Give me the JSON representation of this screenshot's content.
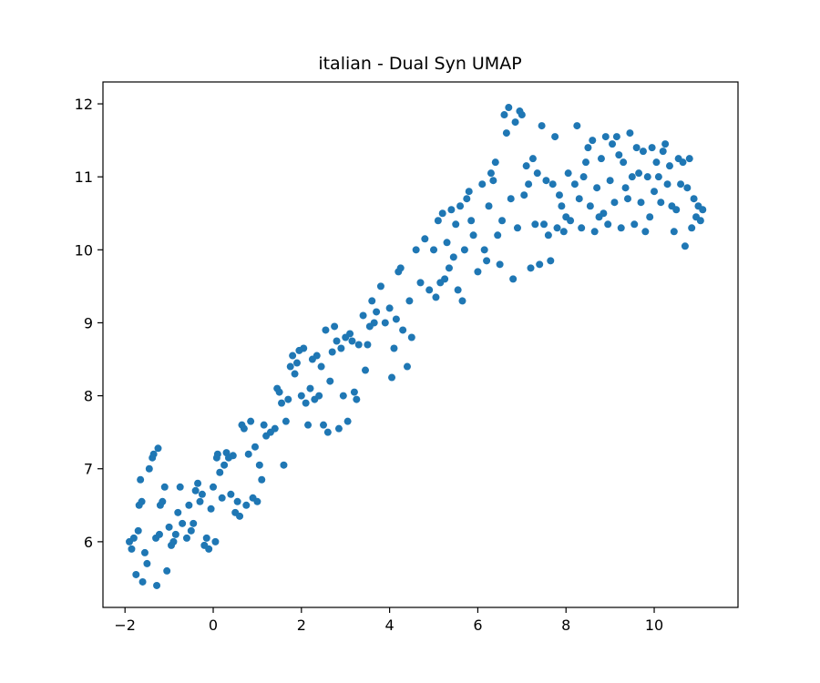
{
  "chart_data": {
    "type": "scatter",
    "title": "italian - Dual Syn UMAP",
    "xlabel": "",
    "ylabel": "",
    "xlim": [
      -2.5,
      11.9
    ],
    "ylim": [
      5.1,
      12.3
    ],
    "xticks": [
      -2,
      0,
      2,
      4,
      6,
      8,
      10
    ],
    "xtick_labels": [
      "−2",
      "0",
      "2",
      "4",
      "6",
      "8",
      "10"
    ],
    "yticks": [
      6,
      7,
      8,
      9,
      10,
      11,
      12
    ],
    "ytick_labels": [
      "6",
      "7",
      "8",
      "9",
      "10",
      "11",
      "12"
    ],
    "grid": false,
    "legend": false,
    "marker_color": "#1f77b4",
    "series": [
      {
        "points": [
          [
            -1.9,
            6.0
          ],
          [
            -1.85,
            5.9
          ],
          [
            -1.8,
            6.05
          ],
          [
            -1.75,
            5.55
          ],
          [
            -1.7,
            6.15
          ],
          [
            -1.68,
            6.5
          ],
          [
            -1.65,
            6.85
          ],
          [
            -1.62,
            6.55
          ],
          [
            -1.6,
            5.45
          ],
          [
            -1.55,
            5.85
          ],
          [
            -1.5,
            5.7
          ],
          [
            -1.45,
            7.0
          ],
          [
            -1.38,
            7.15
          ],
          [
            -1.35,
            7.2
          ],
          [
            -1.3,
            6.05
          ],
          [
            -1.28,
            5.4
          ],
          [
            -1.25,
            7.28
          ],
          [
            -1.22,
            6.1
          ],
          [
            -1.2,
            6.5
          ],
          [
            -1.15,
            6.55
          ],
          [
            -1.1,
            6.75
          ],
          [
            -1.05,
            5.6
          ],
          [
            -1.0,
            6.2
          ],
          [
            -0.95,
            5.95
          ],
          [
            -0.9,
            6.0
          ],
          [
            -0.85,
            6.1
          ],
          [
            -0.8,
            6.4
          ],
          [
            -0.75,
            6.75
          ],
          [
            -0.7,
            6.25
          ],
          [
            -0.6,
            6.05
          ],
          [
            -0.55,
            6.5
          ],
          [
            -0.5,
            6.15
          ],
          [
            -0.45,
            6.25
          ],
          [
            -0.4,
            6.7
          ],
          [
            -0.35,
            6.8
          ],
          [
            -0.3,
            6.55
          ],
          [
            -0.25,
            6.65
          ],
          [
            -0.2,
            5.95
          ],
          [
            -0.15,
            6.05
          ],
          [
            -0.1,
            5.9
          ],
          [
            -0.05,
            6.45
          ],
          [
            0.0,
            6.75
          ],
          [
            0.05,
            6.0
          ],
          [
            0.08,
            7.15
          ],
          [
            0.1,
            7.2
          ],
          [
            0.15,
            6.95
          ],
          [
            0.2,
            6.6
          ],
          [
            0.25,
            7.05
          ],
          [
            0.3,
            7.22
          ],
          [
            0.35,
            7.15
          ],
          [
            0.4,
            6.65
          ],
          [
            0.45,
            7.18
          ],
          [
            0.5,
            6.4
          ],
          [
            0.55,
            6.55
          ],
          [
            0.6,
            6.35
          ],
          [
            0.65,
            7.6
          ],
          [
            0.7,
            7.55
          ],
          [
            0.75,
            6.5
          ],
          [
            0.8,
            7.2
          ],
          [
            0.85,
            7.65
          ],
          [
            0.9,
            6.6
          ],
          [
            0.95,
            7.3
          ],
          [
            1.0,
            6.55
          ],
          [
            1.05,
            7.05
          ],
          [
            1.1,
            6.85
          ],
          [
            1.15,
            7.6
          ],
          [
            1.2,
            7.45
          ],
          [
            1.3,
            7.5
          ],
          [
            1.4,
            7.55
          ],
          [
            1.45,
            8.1
          ],
          [
            1.5,
            8.05
          ],
          [
            1.55,
            7.9
          ],
          [
            1.6,
            7.05
          ],
          [
            1.65,
            7.65
          ],
          [
            1.7,
            7.95
          ],
          [
            1.75,
            8.4
          ],
          [
            1.8,
            8.55
          ],
          [
            1.85,
            8.3
          ],
          [
            1.9,
            8.45
          ],
          [
            1.95,
            8.62
          ],
          [
            2.0,
            8.0
          ],
          [
            2.05,
            8.65
          ],
          [
            2.1,
            7.9
          ],
          [
            2.15,
            7.6
          ],
          [
            2.2,
            8.1
          ],
          [
            2.25,
            8.5
          ],
          [
            2.3,
            7.95
          ],
          [
            2.35,
            8.55
          ],
          [
            2.4,
            8.0
          ],
          [
            2.45,
            8.4
          ],
          [
            2.5,
            7.6
          ],
          [
            2.55,
            8.9
          ],
          [
            2.6,
            7.5
          ],
          [
            2.65,
            8.2
          ],
          [
            2.7,
            8.6
          ],
          [
            2.75,
            8.95
          ],
          [
            2.8,
            8.75
          ],
          [
            2.85,
            7.55
          ],
          [
            2.9,
            8.65
          ],
          [
            2.95,
            8.0
          ],
          [
            3.0,
            8.8
          ],
          [
            3.05,
            7.65
          ],
          [
            3.1,
            8.85
          ],
          [
            3.15,
            8.75
          ],
          [
            3.2,
            8.05
          ],
          [
            3.25,
            7.95
          ],
          [
            3.3,
            8.7
          ],
          [
            3.4,
            9.1
          ],
          [
            3.45,
            8.35
          ],
          [
            3.5,
            8.7
          ],
          [
            3.55,
            8.95
          ],
          [
            3.6,
            9.3
          ],
          [
            3.65,
            9.0
          ],
          [
            3.7,
            9.15
          ],
          [
            3.8,
            9.5
          ],
          [
            3.9,
            9.0
          ],
          [
            4.0,
            9.2
          ],
          [
            4.05,
            8.25
          ],
          [
            4.1,
            8.65
          ],
          [
            4.15,
            9.05
          ],
          [
            4.2,
            9.7
          ],
          [
            4.25,
            9.75
          ],
          [
            4.3,
            8.9
          ],
          [
            4.4,
            8.4
          ],
          [
            4.45,
            9.3
          ],
          [
            4.5,
            8.8
          ],
          [
            4.6,
            10.0
          ],
          [
            4.7,
            9.55
          ],
          [
            4.8,
            10.15
          ],
          [
            4.9,
            9.45
          ],
          [
            5.0,
            10.0
          ],
          [
            5.05,
            9.35
          ],
          [
            5.1,
            10.4
          ],
          [
            5.15,
            9.55
          ],
          [
            5.2,
            10.5
          ],
          [
            5.25,
            9.6
          ],
          [
            5.3,
            10.1
          ],
          [
            5.35,
            9.75
          ],
          [
            5.4,
            10.55
          ],
          [
            5.45,
            9.9
          ],
          [
            5.5,
            10.35
          ],
          [
            5.55,
            9.45
          ],
          [
            5.6,
            10.6
          ],
          [
            5.65,
            9.3
          ],
          [
            5.7,
            10.0
          ],
          [
            5.75,
            10.7
          ],
          [
            5.8,
            10.8
          ],
          [
            5.85,
            10.4
          ],
          [
            5.9,
            10.2
          ],
          [
            6.0,
            9.7
          ],
          [
            6.1,
            10.9
          ],
          [
            6.15,
            10.0
          ],
          [
            6.2,
            9.85
          ],
          [
            6.25,
            10.6
          ],
          [
            6.3,
            11.05
          ],
          [
            6.35,
            10.95
          ],
          [
            6.4,
            11.2
          ],
          [
            6.45,
            10.2
          ],
          [
            6.5,
            9.8
          ],
          [
            6.55,
            10.4
          ],
          [
            6.6,
            11.85
          ],
          [
            6.65,
            11.6
          ],
          [
            6.7,
            11.95
          ],
          [
            6.75,
            10.7
          ],
          [
            6.8,
            9.6
          ],
          [
            6.85,
            11.75
          ],
          [
            6.9,
            10.3
          ],
          [
            6.95,
            11.9
          ],
          [
            7.0,
            11.85
          ],
          [
            7.05,
            10.75
          ],
          [
            7.1,
            11.15
          ],
          [
            7.15,
            10.9
          ],
          [
            7.2,
            9.75
          ],
          [
            7.25,
            11.25
          ],
          [
            7.3,
            10.35
          ],
          [
            7.35,
            11.05
          ],
          [
            7.4,
            9.8
          ],
          [
            7.45,
            11.7
          ],
          [
            7.5,
            10.35
          ],
          [
            7.55,
            10.95
          ],
          [
            7.6,
            10.2
          ],
          [
            7.65,
            9.85
          ],
          [
            7.7,
            10.9
          ],
          [
            7.75,
            11.55
          ],
          [
            7.8,
            10.3
          ],
          [
            7.85,
            10.75
          ],
          [
            7.9,
            10.6
          ],
          [
            7.95,
            10.25
          ],
          [
            8.0,
            10.45
          ],
          [
            8.05,
            11.05
          ],
          [
            8.1,
            10.4
          ],
          [
            8.2,
            10.9
          ],
          [
            8.25,
            11.7
          ],
          [
            8.3,
            10.7
          ],
          [
            8.35,
            10.3
          ],
          [
            8.4,
            11.0
          ],
          [
            8.45,
            11.2
          ],
          [
            8.5,
            11.4
          ],
          [
            8.55,
            10.6
          ],
          [
            8.6,
            11.5
          ],
          [
            8.65,
            10.25
          ],
          [
            8.7,
            10.85
          ],
          [
            8.75,
            10.45
          ],
          [
            8.8,
            11.25
          ],
          [
            8.85,
            10.5
          ],
          [
            8.9,
            11.55
          ],
          [
            8.95,
            10.35
          ],
          [
            9.0,
            10.95
          ],
          [
            9.05,
            11.45
          ],
          [
            9.1,
            10.65
          ],
          [
            9.15,
            11.55
          ],
          [
            9.2,
            11.3
          ],
          [
            9.25,
            10.3
          ],
          [
            9.3,
            11.2
          ],
          [
            9.35,
            10.85
          ],
          [
            9.4,
            10.7
          ],
          [
            9.45,
            11.6
          ],
          [
            9.5,
            11.0
          ],
          [
            9.55,
            10.35
          ],
          [
            9.6,
            11.4
          ],
          [
            9.65,
            11.05
          ],
          [
            9.7,
            10.65
          ],
          [
            9.75,
            11.35
          ],
          [
            9.8,
            10.25
          ],
          [
            9.85,
            11.0
          ],
          [
            9.9,
            10.45
          ],
          [
            9.95,
            11.4
          ],
          [
            10.0,
            10.8
          ],
          [
            10.05,
            11.2
          ],
          [
            10.1,
            11.0
          ],
          [
            10.15,
            10.65
          ],
          [
            10.2,
            11.35
          ],
          [
            10.25,
            11.45
          ],
          [
            10.3,
            10.9
          ],
          [
            10.35,
            11.15
          ],
          [
            10.4,
            10.6
          ],
          [
            10.45,
            10.25
          ],
          [
            10.5,
            10.55
          ],
          [
            10.55,
            11.25
          ],
          [
            10.6,
            10.9
          ],
          [
            10.65,
            11.2
          ],
          [
            10.7,
            10.05
          ],
          [
            10.75,
            10.85
          ],
          [
            10.8,
            11.25
          ],
          [
            10.85,
            10.3
          ],
          [
            10.9,
            10.7
          ],
          [
            10.95,
            10.45
          ],
          [
            11.0,
            10.6
          ],
          [
            11.05,
            10.4
          ],
          [
            11.1,
            10.55
          ]
        ]
      }
    ]
  }
}
